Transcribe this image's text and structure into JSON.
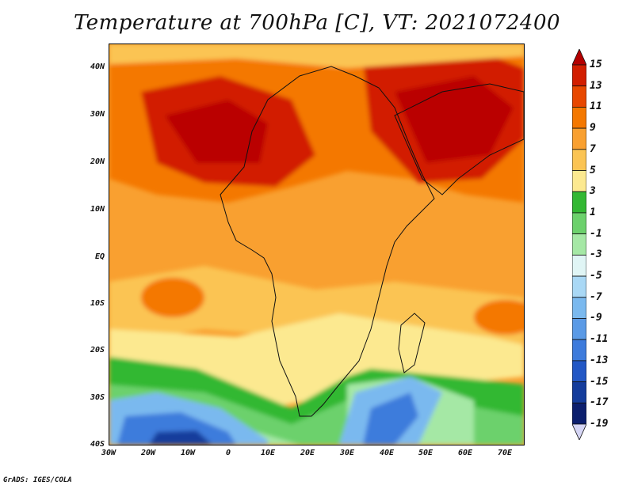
{
  "title": "Temperature at 700hPa [C], VT: 2021072400",
  "credit": "GrADS: IGES/COLA",
  "map": {
    "lat_labels": [
      "40N",
      "30N",
      "20N",
      "10N",
      "EQ",
      "10S",
      "20S",
      "30S",
      "40S"
    ],
    "lon_labels": [
      "30W",
      "20W",
      "10W",
      "0",
      "10E",
      "20E",
      "30E",
      "40E",
      "50E",
      "60E",
      "70E"
    ]
  },
  "colorbar": {
    "labels": [
      "15",
      "13",
      "11",
      "9",
      "7",
      "5",
      "3",
      "1",
      "-1",
      "-3",
      "-5",
      "-7",
      "-9",
      "-11",
      "-13",
      "-15",
      "-17",
      "-19"
    ],
    "colors": [
      "#b40000",
      "#d21e00",
      "#e84800",
      "#f47800",
      "#f9a030",
      "#fbc453",
      "#fce990",
      "#33b833",
      "#6cd16c",
      "#a5e8a5",
      "#e0f5f5",
      "#a9d8f5",
      "#7ab9ef",
      "#5a9ae6",
      "#3d7bdc",
      "#2257c5",
      "#143c9c",
      "#0c1f6e",
      "#d6d6f5"
    ]
  }
}
